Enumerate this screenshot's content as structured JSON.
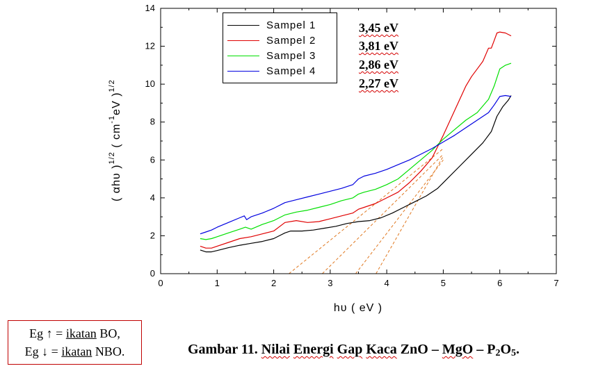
{
  "chart_data": {
    "type": "line",
    "xlabel": "hυ ( eV )",
    "ylabel_parts": [
      "( αhυ )",
      "1/2",
      " ( cm",
      "-1",
      "eV )",
      "1/2"
    ],
    "xlim": [
      0,
      7
    ],
    "ylim": [
      0,
      14
    ],
    "xticks": [
      0,
      1,
      2,
      3,
      4,
      5,
      6,
      7
    ],
    "yticks": [
      0,
      2,
      4,
      6,
      8,
      10,
      12,
      14
    ],
    "grid": false,
    "legend_position": "top-left",
    "series": [
      {
        "name": "Sampel 1",
        "color": "#000000",
        "x": [
          0.7,
          0.8,
          0.9,
          1.0,
          1.2,
          1.4,
          1.6,
          1.8,
          2.0,
          2.1,
          2.2,
          2.3,
          2.5,
          2.7,
          2.9,
          3.1,
          3.3,
          3.5,
          3.7,
          3.9,
          4.1,
          4.3,
          4.5,
          4.7,
          4.9,
          5.1,
          5.3,
          5.5,
          5.7,
          5.85,
          5.95,
          6.05,
          6.15,
          6.2
        ],
        "y": [
          1.25,
          1.15,
          1.15,
          1.22,
          1.37,
          1.5,
          1.6,
          1.7,
          1.85,
          2.0,
          2.15,
          2.25,
          2.25,
          2.3,
          2.4,
          2.5,
          2.65,
          2.75,
          2.8,
          2.95,
          3.2,
          3.5,
          3.8,
          4.1,
          4.5,
          5.1,
          5.7,
          6.3,
          6.9,
          7.5,
          8.3,
          8.8,
          9.15,
          9.4
        ]
      },
      {
        "name": "Sampel 2",
        "color": "#e00000",
        "x": [
          0.7,
          0.8,
          0.9,
          1.0,
          1.2,
          1.4,
          1.6,
          1.8,
          2.0,
          2.2,
          2.4,
          2.6,
          2.8,
          3.0,
          3.2,
          3.4,
          3.5,
          3.6,
          3.8,
          4.0,
          4.2,
          4.4,
          4.6,
          4.8,
          5.0,
          5.2,
          5.4,
          5.5,
          5.6,
          5.7,
          5.8,
          5.85,
          5.9,
          5.95,
          6.0,
          6.1,
          6.2
        ],
        "y": [
          1.45,
          1.35,
          1.35,
          1.45,
          1.65,
          1.85,
          1.95,
          2.1,
          2.25,
          2.7,
          2.8,
          2.7,
          2.75,
          2.9,
          3.05,
          3.2,
          3.4,
          3.5,
          3.7,
          4.0,
          4.3,
          4.8,
          5.4,
          6.1,
          7.3,
          8.6,
          9.9,
          10.4,
          10.8,
          11.2,
          11.9,
          11.9,
          12.3,
          12.7,
          12.75,
          12.7,
          12.55
        ]
      },
      {
        "name": "Sampel 3",
        "color": "#00e000",
        "x": [
          0.7,
          0.8,
          0.9,
          1.0,
          1.2,
          1.4,
          1.5,
          1.6,
          1.8,
          2.0,
          2.2,
          2.4,
          2.6,
          2.8,
          3.0,
          3.2,
          3.4,
          3.5,
          3.6,
          3.8,
          4.0,
          4.2,
          4.4,
          4.6,
          4.8,
          5.0,
          5.2,
          5.4,
          5.6,
          5.8,
          5.9,
          6.0,
          6.1,
          6.2
        ],
        "y": [
          1.85,
          1.8,
          1.85,
          1.95,
          2.15,
          2.35,
          2.45,
          2.35,
          2.6,
          2.8,
          3.1,
          3.25,
          3.35,
          3.5,
          3.65,
          3.85,
          4.0,
          4.2,
          4.3,
          4.45,
          4.7,
          5.0,
          5.5,
          6.0,
          6.5,
          7.1,
          7.6,
          8.1,
          8.5,
          9.2,
          9.9,
          10.8,
          11.0,
          11.1
        ]
      },
      {
        "name": "Sampel 4",
        "color": "#0000e0",
        "x": [
          0.7,
          0.8,
          0.9,
          1.0,
          1.2,
          1.4,
          1.48,
          1.52,
          1.6,
          1.8,
          2.0,
          2.2,
          2.4,
          2.6,
          2.8,
          3.0,
          3.2,
          3.4,
          3.5,
          3.6,
          3.8,
          4.0,
          4.2,
          4.4,
          4.6,
          4.8,
          5.0,
          5.2,
          5.4,
          5.6,
          5.8,
          5.9,
          6.0,
          6.1,
          6.2
        ],
        "y": [
          2.1,
          2.2,
          2.3,
          2.45,
          2.7,
          2.95,
          3.05,
          2.85,
          3.0,
          3.2,
          3.45,
          3.75,
          3.9,
          4.05,
          4.2,
          4.35,
          4.5,
          4.7,
          5.0,
          5.15,
          5.3,
          5.5,
          5.75,
          6.0,
          6.3,
          6.6,
          6.95,
          7.3,
          7.7,
          8.1,
          8.5,
          8.9,
          9.35,
          9.4,
          9.35
        ]
      }
    ],
    "fit_lines": [
      {
        "color": "#e07820",
        "x": [
          2.27,
          5.0
        ],
        "y": [
          0,
          6.6
        ]
      },
      {
        "color": "#e07820",
        "x": [
          2.86,
          5.0
        ],
        "y": [
          0,
          6.3
        ]
      },
      {
        "color": "#e07820",
        "x": [
          3.45,
          5.0
        ],
        "y": [
          0,
          6.0
        ]
      },
      {
        "color": "#e07820",
        "x": [
          3.81,
          5.0
        ],
        "y": [
          0,
          6.2
        ]
      }
    ],
    "annotations": [
      "3,45 eV",
      "3,81 eV",
      "2,86 eV",
      "2,27 eV"
    ]
  },
  "note": {
    "line1_prefix": "Eg ↑ = ",
    "line1_word": "ikatan",
    "line1_suffix": " BO,",
    "line2_prefix": "Eg ↓ = ",
    "line2_word": "ikatan",
    "line2_suffix": " NBO."
  },
  "caption": {
    "prefix": "Gambar 11. ",
    "w1": "Nilai",
    "sp1": " ",
    "w2": "Energi",
    "sp2": " ",
    "w3": "Gap",
    "sp3": " ",
    "w4": "Kaca",
    "mid": " ZnO – ",
    "w5": "MgO",
    "tail": " – P",
    "sub1": "2",
    "o": "O",
    "sub2": "5",
    "end": "."
  }
}
